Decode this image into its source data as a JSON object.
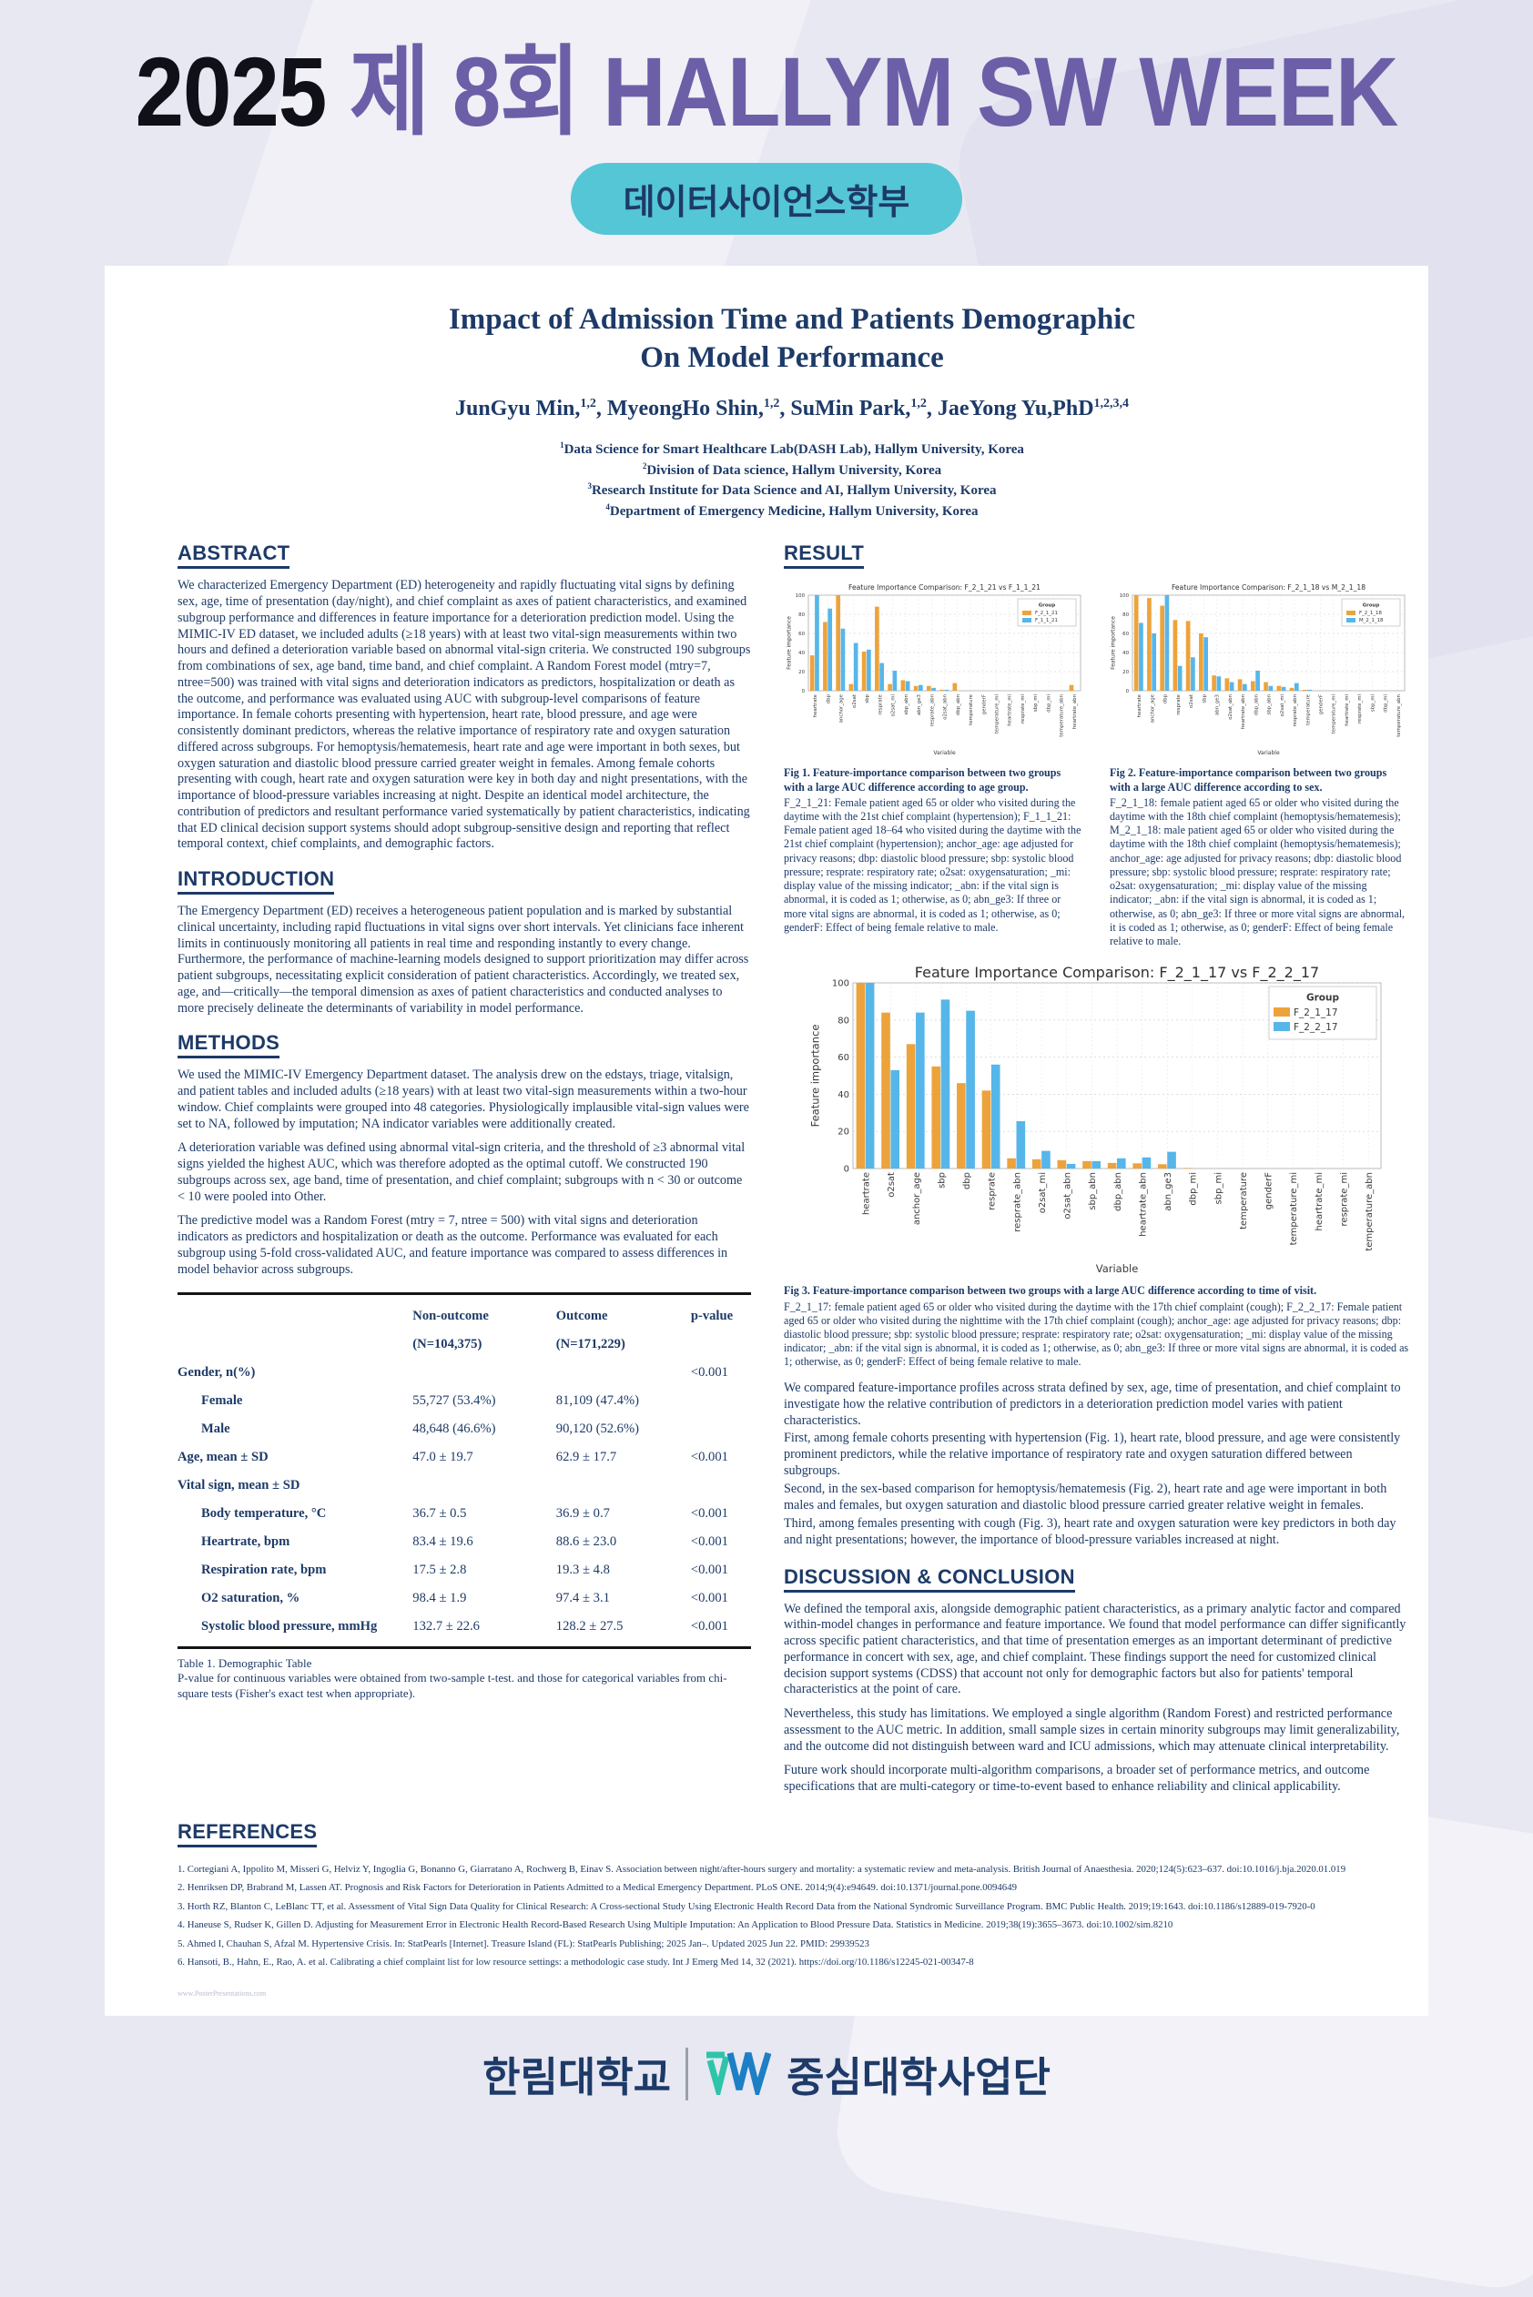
{
  "banner": {
    "year": "2025",
    "title": " 제 8회 HALLYM SW WEEK",
    "department": "데이터사이언스학부"
  },
  "poster": {
    "title_line1": "Impact of Admission Time and Patients Demographic",
    "title_line2": "On Model Performance",
    "authors": [
      {
        "name": "JunGyu Min,",
        "sup": "1,2"
      },
      {
        "name": ", MyeongHo Shin,",
        "sup": "1,2"
      },
      {
        "name": ", SuMin Park,",
        "sup": "1,2"
      },
      {
        "name": ", JaeYong Yu,PhD",
        "sup": "1,2,3,4"
      }
    ],
    "affiliations": [
      {
        "sup": "1",
        "text": "Data Science for Smart Healthcare Lab(DASH Lab), Hallym University, Korea"
      },
      {
        "sup": "2",
        "text": "Division of Data science, Hallym University, Korea"
      },
      {
        "sup": "3",
        "text": "Research Institute for Data Science and AI, Hallym University, Korea"
      },
      {
        "sup": "4",
        "text": "Department of Emergency Medicine, Hallym University, Korea"
      }
    ]
  },
  "sections": {
    "abstract": {
      "title": "ABSTRACT",
      "body": "We characterized Emergency Department (ED) heterogeneity and rapidly fluctuating vital signs by defining sex, age, time of presentation (day/night), and chief complaint as axes of patient characteristics, and examined subgroup performance and differences in feature importance for a deterioration prediction model. Using the MIMIC-IV ED dataset, we included adults (≥18 years) with at least two vital-sign measurements within two hours and defined a deterioration variable based on abnormal vital-sign criteria. We constructed 190 subgroups from combinations of sex, age band, time band, and chief complaint. A Random Forest model (mtry=7, ntree=500) was trained with vital signs and deterioration indicators as predictors, hospitalization or death as the outcome, and performance was evaluated using AUC with subgroup-level comparisons of feature importance. In female cohorts presenting with hypertension, heart rate, blood pressure, and age were consistently dominant predictors, whereas the relative importance of respiratory rate and oxygen saturation differed across subgroups. For hemoptysis/hematemesis, heart rate and age were important in both sexes, but oxygen saturation and diastolic blood pressure carried greater weight in females. Among female cohorts presenting with cough, heart rate and oxygen saturation were key in both day and night presentations, with the importance of blood-pressure variables increasing at night. Despite an identical model architecture, the contribution of predictors and resultant performance varied systematically by patient characteristics, indicating that ED clinical decision support systems should adopt subgroup-sensitive design and reporting that reflect temporal context, chief complaints, and demographic factors."
    },
    "introduction": {
      "title": "INTRODUCTION",
      "body": "The Emergency Department (ED) receives a heterogeneous patient population and is marked by substantial clinical uncertainty, including rapid fluctuations in vital signs over short intervals. Yet clinicians face inherent limits in continuously monitoring all patients in real time and responding instantly to every change. Furthermore, the performance of machine-learning models designed to support prioritization may differ across patient subgroups, necessitating explicit consideration of patient characteristics. Accordingly, we treated sex, age, and—critically—the temporal dimension as axes of patient characteristics and conducted analyses to more precisely delineate the determinants of variability in model performance."
    },
    "methods": {
      "title": "METHODS",
      "paragraphs": [
        "We used the MIMIC-IV Emergency Department dataset. The analysis drew on the edstays, triage, vitalsign, and patient tables and included adults (≥18 years) with at least two vital-sign measurements within a two-hour window. Chief complaints were grouped into 48 categories. Physiologically implausible vital-sign values were set to NA, followed by imputation; NA indicator variables were additionally created.",
        "A deterioration variable was defined using abnormal vital-sign criteria, and the threshold of ≥3 abnormal vital signs yielded the highest AUC, which was therefore adopted as the optimal cutoff. We constructed 190 subgroups across sex, age band, time of presentation, and chief complaint; subgroups with n < 30 or outcome < 10 were pooled into Other.",
        "The predictive model was a Random Forest (mtry = 7, ntree = 500) with vital signs and deterioration indicators as predictors and hospitalization or death as the outcome. Performance was evaluated for each subgroup using 5-fold cross-validated AUC, and feature importance was compared to assess differences in model behavior across subgroups."
      ]
    },
    "result": {
      "title": "RESULT",
      "paragraphs": [
        "We compared feature-importance profiles across strata defined by sex, age, time of presentation, and chief complaint to investigate how the relative contribution of predictors in a deterioration prediction model varies with patient characteristics.",
        "First, among female cohorts presenting with hypertension (Fig. 1), heart rate, blood pressure, and age were consistently prominent predictors, while the relative importance of respiratory rate and oxygen saturation differed between subgroups.",
        "Second, in the sex-based comparison for hemoptysis/hematemesis (Fig. 2), heart rate and age were important in both males and females, but oxygen saturation and diastolic blood pressure carried greater relative weight in females.",
        "Third, among females presenting with cough (Fig. 3), heart rate and oxygen saturation were key predictors in both day and night presentations; however, the importance of blood-pressure variables increased at night."
      ]
    },
    "discussion": {
      "title": "DISCUSSION & CONCLUSION",
      "paragraphs": [
        "We defined the temporal axis, alongside demographic patient characteristics, as a primary analytic factor and compared within-model changes in performance and feature importance. We found that model performance can differ significantly across specific patient characteristics, and that time of presentation emerges as an important determinant of predictive performance in concert with sex, age, and chief complaint. These findings support the need for customized clinical decision support systems (CDSS) that account not only for demographic factors but also for patients' temporal characteristics at the point of care.",
        "Nevertheless, this study has limitations. We employed a single algorithm (Random Forest) and restricted performance assessment to the AUC metric. In addition, small sample sizes in certain minority subgroups may limit generalizability, and the outcome did not distinguish between ward and ICU admissions, which may attenuate clinical interpretability.",
        "Future work should incorporate multi-algorithm comparisons, a broader set of performance metrics, and outcome specifications that are multi-category or time-to-event based to enhance reliability and clinical applicability."
      ]
    },
    "references": {
      "title": "REFERENCES",
      "items": [
        "Cortegiani A, Ippolito M, Misseri G, Helviz Y, Ingoglia G, Bonanno G, Giarratano A, Rochwerg B, Einav S. Association between night/after-hours surgery and mortality: a systematic review and meta-analysis. British Journal of Anaesthesia. 2020;124(5):623–637. doi:10.1016/j.bja.2020.01.019",
        "Henriksen DP, Brabrand M, Lassen AT. Prognosis and Risk Factors for Deterioration in Patients Admitted to a Medical Emergency Department. PLoS ONE. 2014;9(4):e94649. doi:10.1371/journal.pone.0094649",
        "Horth RZ, Blanton C, LeBlanc TT, et al. Assessment of Vital Sign Data Quality for Clinical Research: A Cross-sectional Study Using Electronic Health Record Data from the National Syndromic Surveillance Program. BMC Public Health. 2019;19:1643. doi:10.1186/s12889-019-7920-0",
        "Haneuse S, Rudser K, Gillen D. Adjusting for Measurement Error in Electronic Health Record-Based Research Using Multiple Imputation: An Application to Blood Pressure Data. Statistics in Medicine. 2019;38(19):3655–3673. doi:10.1002/sim.8210",
        "Ahmed I, Chauhan S, Afzal M. Hypertensive Crisis. In: StatPearls [Internet]. Treasure Island (FL): StatPearls Publishing; 2025 Jan–. Updated 2025 Jun 22. PMID: 29939523",
        "Hansoti, B., Hahn, E., Rao, A. et al. Calibrating a chief complaint list for low resource settings: a methodologic case study. Int J Emerg Med 14, 32 (2021). https://doi.org/10.1186/s12245-021-00347-8"
      ]
    }
  },
  "table1": {
    "col_headers": [
      "",
      "Non-outcome",
      "Outcome",
      "p-value"
    ],
    "col_subheaders": [
      "",
      "(N=104,375)",
      "(N=171,229)",
      ""
    ],
    "rows": [
      {
        "label": "Gender, n(%)",
        "indent": false,
        "non_outcome": "",
        "outcome": "",
        "p": "<0.001"
      },
      {
        "label": "Female",
        "indent": true,
        "non_outcome": "55,727 (53.4%)",
        "outcome": "81,109 (47.4%)",
        "p": ""
      },
      {
        "label": "Male",
        "indent": true,
        "non_outcome": "48,648 (46.6%)",
        "outcome": "90,120 (52.6%)",
        "p": ""
      },
      {
        "label": "Age, mean ± SD",
        "indent": false,
        "non_outcome": "47.0 ± 19.7",
        "outcome": "62.9 ± 17.7",
        "p": "<0.001"
      },
      {
        "label": "Vital sign, mean ± SD",
        "indent": false,
        "non_outcome": "",
        "outcome": "",
        "p": ""
      },
      {
        "label": "Body temperature, °C",
        "indent": true,
        "non_outcome": "36.7 ± 0.5",
        "outcome": "36.9 ± 0.7",
        "p": "<0.001"
      },
      {
        "label": "Heartrate, bpm",
        "indent": true,
        "non_outcome": "83.4 ± 19.6",
        "outcome": "88.6 ± 23.0",
        "p": "<0.001"
      },
      {
        "label": "Respiration rate, bpm",
        "indent": true,
        "non_outcome": "17.5 ± 2.8",
        "outcome": "19.3 ± 4.8",
        "p": "<0.001"
      },
      {
        "label": "O2 saturation, %",
        "indent": true,
        "non_outcome": "98.4 ± 1.9",
        "outcome": "97.4 ± 3.1",
        "p": "<0.001"
      },
      {
        "label": "Systolic blood pressure, mmHg",
        "indent": true,
        "non_outcome": "132.7 ± 22.6",
        "outcome": "128.2 ± 27.5",
        "p": "<0.001"
      }
    ],
    "caption_title": "Table 1. Demographic Table",
    "caption_body": "P-value for continuous variables were obtained from two-sample t-test. and those for categorical variables from chi-square tests (Fisher's exact test when appropriate)."
  },
  "figures": [
    {
      "lead": "Fig 1. Feature-importance comparison between two groups with a large AUC difference according to age group.",
      "body": "F_2_1_21: Female patient aged 65 or older who visited during the daytime with the 21st chief complaint (hypertension); F_1_1_21: Female patient aged 18–64 who visited during the daytime with the 21st chief complaint (hypertension); anchor_age: age adjusted for privacy reasons; dbp: diastolic blood pressure; sbp: systolic blood pressure; resprate: respiratory rate; o2sat: oxygensaturation; _mi: display value of the missing indicator; _abn: if the vital sign is abnormal, it is coded as 1; otherwise, as 0; abn_ge3: If three or more vital signs are abnormal, it is coded as 1; otherwise, as 0; genderF: Effect of being female relative to male."
    },
    {
      "lead": "Fig 2. Feature-importance comparison between two groups with a large AUC difference according to sex.",
      "body": "F_2_1_18: female patient aged 65 or older who visited during the daytime with the 18th chief complaint (hemoptysis/hematemesis); M_2_1_18: male patient aged 65 or older who visited during the daytime with the 18th chief complaint (hemoptysis/hematemesis); anchor_age: age adjusted for privacy reasons; dbp: diastolic blood pressure; sbp: systolic blood pressure; resprate: respiratory rate; o2sat: oxygensaturation; _mi: display value of the missing indicator; _abn: if the vital sign is abnormal, it is coded as 1; otherwise, as 0; abn_ge3: If three or more vital signs are abnormal, it is coded as 1; otherwise, as 0; genderF: Effect of being female relative to male."
    },
    {
      "lead": "Fig 3. Feature-importance comparison between two groups with a large AUC difference according to time of visit.",
      "body": "F_2_1_17: female patient aged 65 or older who visited during the daytime with the 17th chief complaint (cough); F_2_2_17: Female patient aged 65 or older who visited during the nighttime with the 17th chief complaint (cough); anchor_age: age adjusted for privacy reasons; dbp: diastolic blood pressure; sbp: systolic blood pressure; resprate: respiratory rate; o2sat: oxygensaturation; _mi: display value of the missing indicator; _abn: if the vital sign is abnormal, it is coded as 1; otherwise, as 0; abn_ge3: If three or more vital signs are abnormal, it is coded as 1; otherwise, as 0; genderF: Effect of being female relative to male."
    }
  ],
  "chart_data": [
    {
      "type": "bar",
      "title": "Feature Importance Comparison: F_2_1_21 vs F_1_1_21",
      "xlabel": "Variable",
      "ylabel": "Feature importance",
      "ylim": [
        0,
        100
      ],
      "yticks": [
        0,
        20,
        40,
        60,
        80,
        100
      ],
      "legend_title": "Group",
      "legend_position": "top-right",
      "grid": true,
      "categories": [
        "heartrate",
        "dbp",
        "anchor_age",
        "o2sat",
        "sbp",
        "resprate",
        "o2sat_mi",
        "sbp_abn",
        "abn_ge3",
        "resprate_abn",
        "o2sat_abn",
        "dbp_abn",
        "temperature",
        "genderF",
        "temperature_mi",
        "heartrate_mi",
        "resprate_mi",
        "sbp_mi",
        "dbp_mi",
        "temperature_abn",
        "heartrate_abn"
      ],
      "series": [
        {
          "name": "F_2_1_21",
          "color": "#EDA33B",
          "values": [
            37,
            72,
            100,
            7,
            41,
            88,
            7,
            11,
            5,
            5,
            1,
            8,
            0,
            0,
            0,
            0,
            0,
            0,
            0,
            0,
            6
          ]
        },
        {
          "name": "F_1_1_21",
          "color": "#57B6E9",
          "values": [
            100,
            86,
            65,
            50,
            43,
            29,
            21,
            10,
            6,
            3,
            1,
            0,
            0,
            0,
            0,
            0,
            0,
            0,
            0,
            0,
            0
          ]
        }
      ]
    },
    {
      "type": "bar",
      "title": "Feature Importance Comparison: F_2_1_18 vs M_2_1_18",
      "xlabel": "Variable",
      "ylabel": "Feature importance",
      "ylim": [
        0,
        100
      ],
      "yticks": [
        0,
        20,
        40,
        60,
        80,
        100
      ],
      "legend_title": "Group",
      "legend_position": "top-right",
      "grid": true,
      "categories": [
        "heartrate",
        "anchor_age",
        "dbp",
        "resprate",
        "o2sat",
        "sbp",
        "abn_ge3",
        "o2sat_abn",
        "heartrate_abn",
        "dbp_abn",
        "sbp_abn",
        "o2sat_mi",
        "resprate_abn",
        "temperature",
        "genderF",
        "temperature_mi",
        "heartrate_mi",
        "resprate_mi",
        "sbp_mi",
        "dbp_mi",
        "temperature_abn"
      ],
      "series": [
        {
          "name": "F_2_1_18",
          "color": "#EDA33B",
          "values": [
            100,
            97,
            89,
            74,
            73,
            60,
            16,
            13,
            12,
            10,
            9,
            5,
            3,
            1,
            0,
            0,
            0,
            0,
            0,
            0,
            0
          ]
        },
        {
          "name": "M_2_1_18",
          "color": "#57B6E9",
          "values": [
            71,
            60,
            100,
            26,
            35,
            56,
            15,
            9,
            7,
            21,
            5,
            4,
            8,
            1,
            0,
            0,
            0,
            0,
            0,
            0,
            0
          ]
        }
      ]
    },
    {
      "type": "bar",
      "title": "Feature Importance Comparison: F_2_1_17 vs F_2_2_17",
      "xlabel": "Variable",
      "ylabel": "Feature importance",
      "ylim": [
        0,
        100
      ],
      "yticks": [
        0,
        20,
        40,
        60,
        80,
        100
      ],
      "legend_title": "Group",
      "legend_position": "top-right",
      "grid": true,
      "categories": [
        "heartrate",
        "o2sat",
        "anchor_age",
        "sbp",
        "dbp",
        "resprate",
        "resprate_abn",
        "o2sat_mi",
        "o2sat_abn",
        "sbp_abn",
        "dbp_abn",
        "heartrate_abn",
        "abn_ge3",
        "dbp_mi",
        "sbp_mi",
        "temperature",
        "genderF",
        "temperature_mi",
        "heartrate_mi",
        "resprate_mi",
        "temperature_abn"
      ],
      "series": [
        {
          "name": "F_2_1_17",
          "color": "#EDA33B",
          "values": [
            100,
            84,
            67,
            55,
            46,
            42,
            5.5,
            5,
            4.5,
            4,
            3,
            2.8,
            2.3,
            0.3,
            0,
            0,
            0,
            0,
            0,
            0,
            0
          ]
        },
        {
          "name": "F_2_2_17",
          "color": "#57B6E9",
          "values": [
            100,
            53,
            84,
            91,
            85,
            56,
            25.5,
            9.5,
            2.5,
            4,
            5.5,
            6,
            9,
            0,
            0,
            0,
            0,
            0,
            0,
            0,
            0
          ]
        }
      ]
    }
  ],
  "watermark": "www.PosterPresentations.com",
  "footer": {
    "university": "한림대학교",
    "program": "중심대학사업단"
  },
  "colors": {
    "navy": "#1d3a68",
    "purple": "#6c5fa7",
    "teal_pill": "#54c6d6",
    "orange_bar": "#EDA33B",
    "blue_bar": "#57B6E9"
  }
}
